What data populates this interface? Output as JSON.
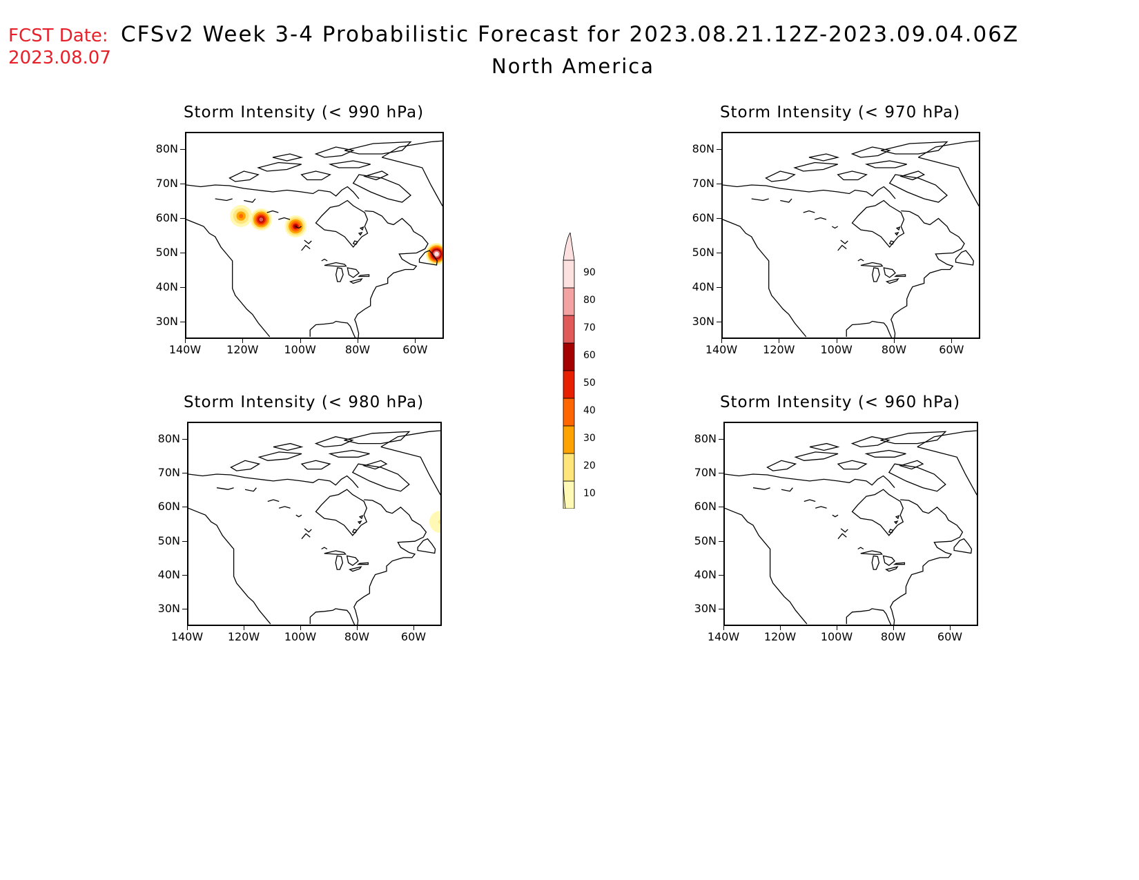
{
  "header": {
    "fcst_label": "FCST Date:",
    "fcst_date": "2023.08.07",
    "title": "CFSv2 Week 3-4 Probabilistic Forecast for 2023.08.21.12Z-2023.09.04.06Z",
    "region": "North America"
  },
  "panels": [
    {
      "id": "p990",
      "title": "Storm Intensity (< 990 hPa)"
    },
    {
      "id": "p970",
      "title": "Storm Intensity (< 970 hPa)"
    },
    {
      "id": "p980",
      "title": "Storm Intensity (< 980 hPa)"
    },
    {
      "id": "p960",
      "title": "Storm Intensity (< 960 hPa)"
    }
  ],
  "axes": {
    "lat_labels": [
      "80N",
      "70N",
      "60N",
      "50N",
      "40N",
      "30N"
    ],
    "lon_labels": [
      "140W",
      "120W",
      "100W",
      "80W",
      "60W"
    ]
  },
  "colorbar": {
    "levels": [
      "10",
      "20",
      "30",
      "40",
      "50",
      "60",
      "70",
      "80",
      "90"
    ],
    "colors": [
      "#fff9b5",
      "#ffe57a",
      "#ffa300",
      "#ff6500",
      "#e62000",
      "#a50000",
      "#e05a5a",
      "#f4a3a3",
      "#fde0e0"
    ]
  },
  "probability_blobs": {
    "p990": [
      {
        "lon": -121,
        "lat": 61,
        "max_level": "40"
      },
      {
        "lon": -114,
        "lat": 60,
        "max_level": "70"
      },
      {
        "lon": -102,
        "lat": 58,
        "max_level": "60"
      },
      {
        "lon": -53,
        "lat": 50,
        "max_level": "90"
      }
    ],
    "p980": [
      {
        "lon": -51,
        "lat": 56,
        "max_level": "20"
      }
    ],
    "p970": [],
    "p960": []
  }
}
